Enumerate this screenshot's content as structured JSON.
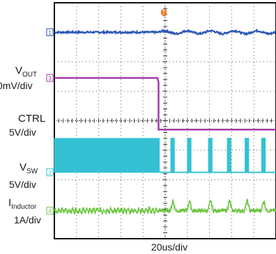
{
  "chart_data": {
    "type": "line",
    "xlabel": "20us/div",
    "grid": true,
    "grid_divisions": {
      "x": 10,
      "y": 8
    },
    "x_range_div": [
      0,
      10
    ],
    "trigger_marker": "T",
    "channels": [
      {
        "id": 1,
        "name_main": "V",
        "name_sub": "OUT",
        "scale": "0mV/div",
        "color": "#2b57b8",
        "offset_div": 7.0,
        "level_div": 7.0
      },
      {
        "id": 3,
        "name_main": "CTRL",
        "name_sub": "",
        "scale": "5V/div",
        "color": "#a23aa6",
        "offset_div": 5.45,
        "high_div": 5.45,
        "low_div": 3.7,
        "edge_div": 4.7
      },
      {
        "id": 2,
        "name_main": "V",
        "name_sub": "SW",
        "scale": "5V/div",
        "color": "#35c1d3",
        "offset_div": 2.25,
        "high_div": 3.4,
        "low_div": 2.25,
        "dense_start_div": 0.0,
        "dense_end_div": 4.75,
        "burst_centers_div": [
          5.35,
          6.1,
          7.05,
          7.9,
          8.7,
          9.45
        ]
      },
      {
        "id": 4,
        "name_main": "I",
        "name_sub": "Inductor",
        "scale": "1A/div",
        "color": "#6cc63f",
        "offset_div": 0.95,
        "level_div": 0.95
      }
    ]
  }
}
